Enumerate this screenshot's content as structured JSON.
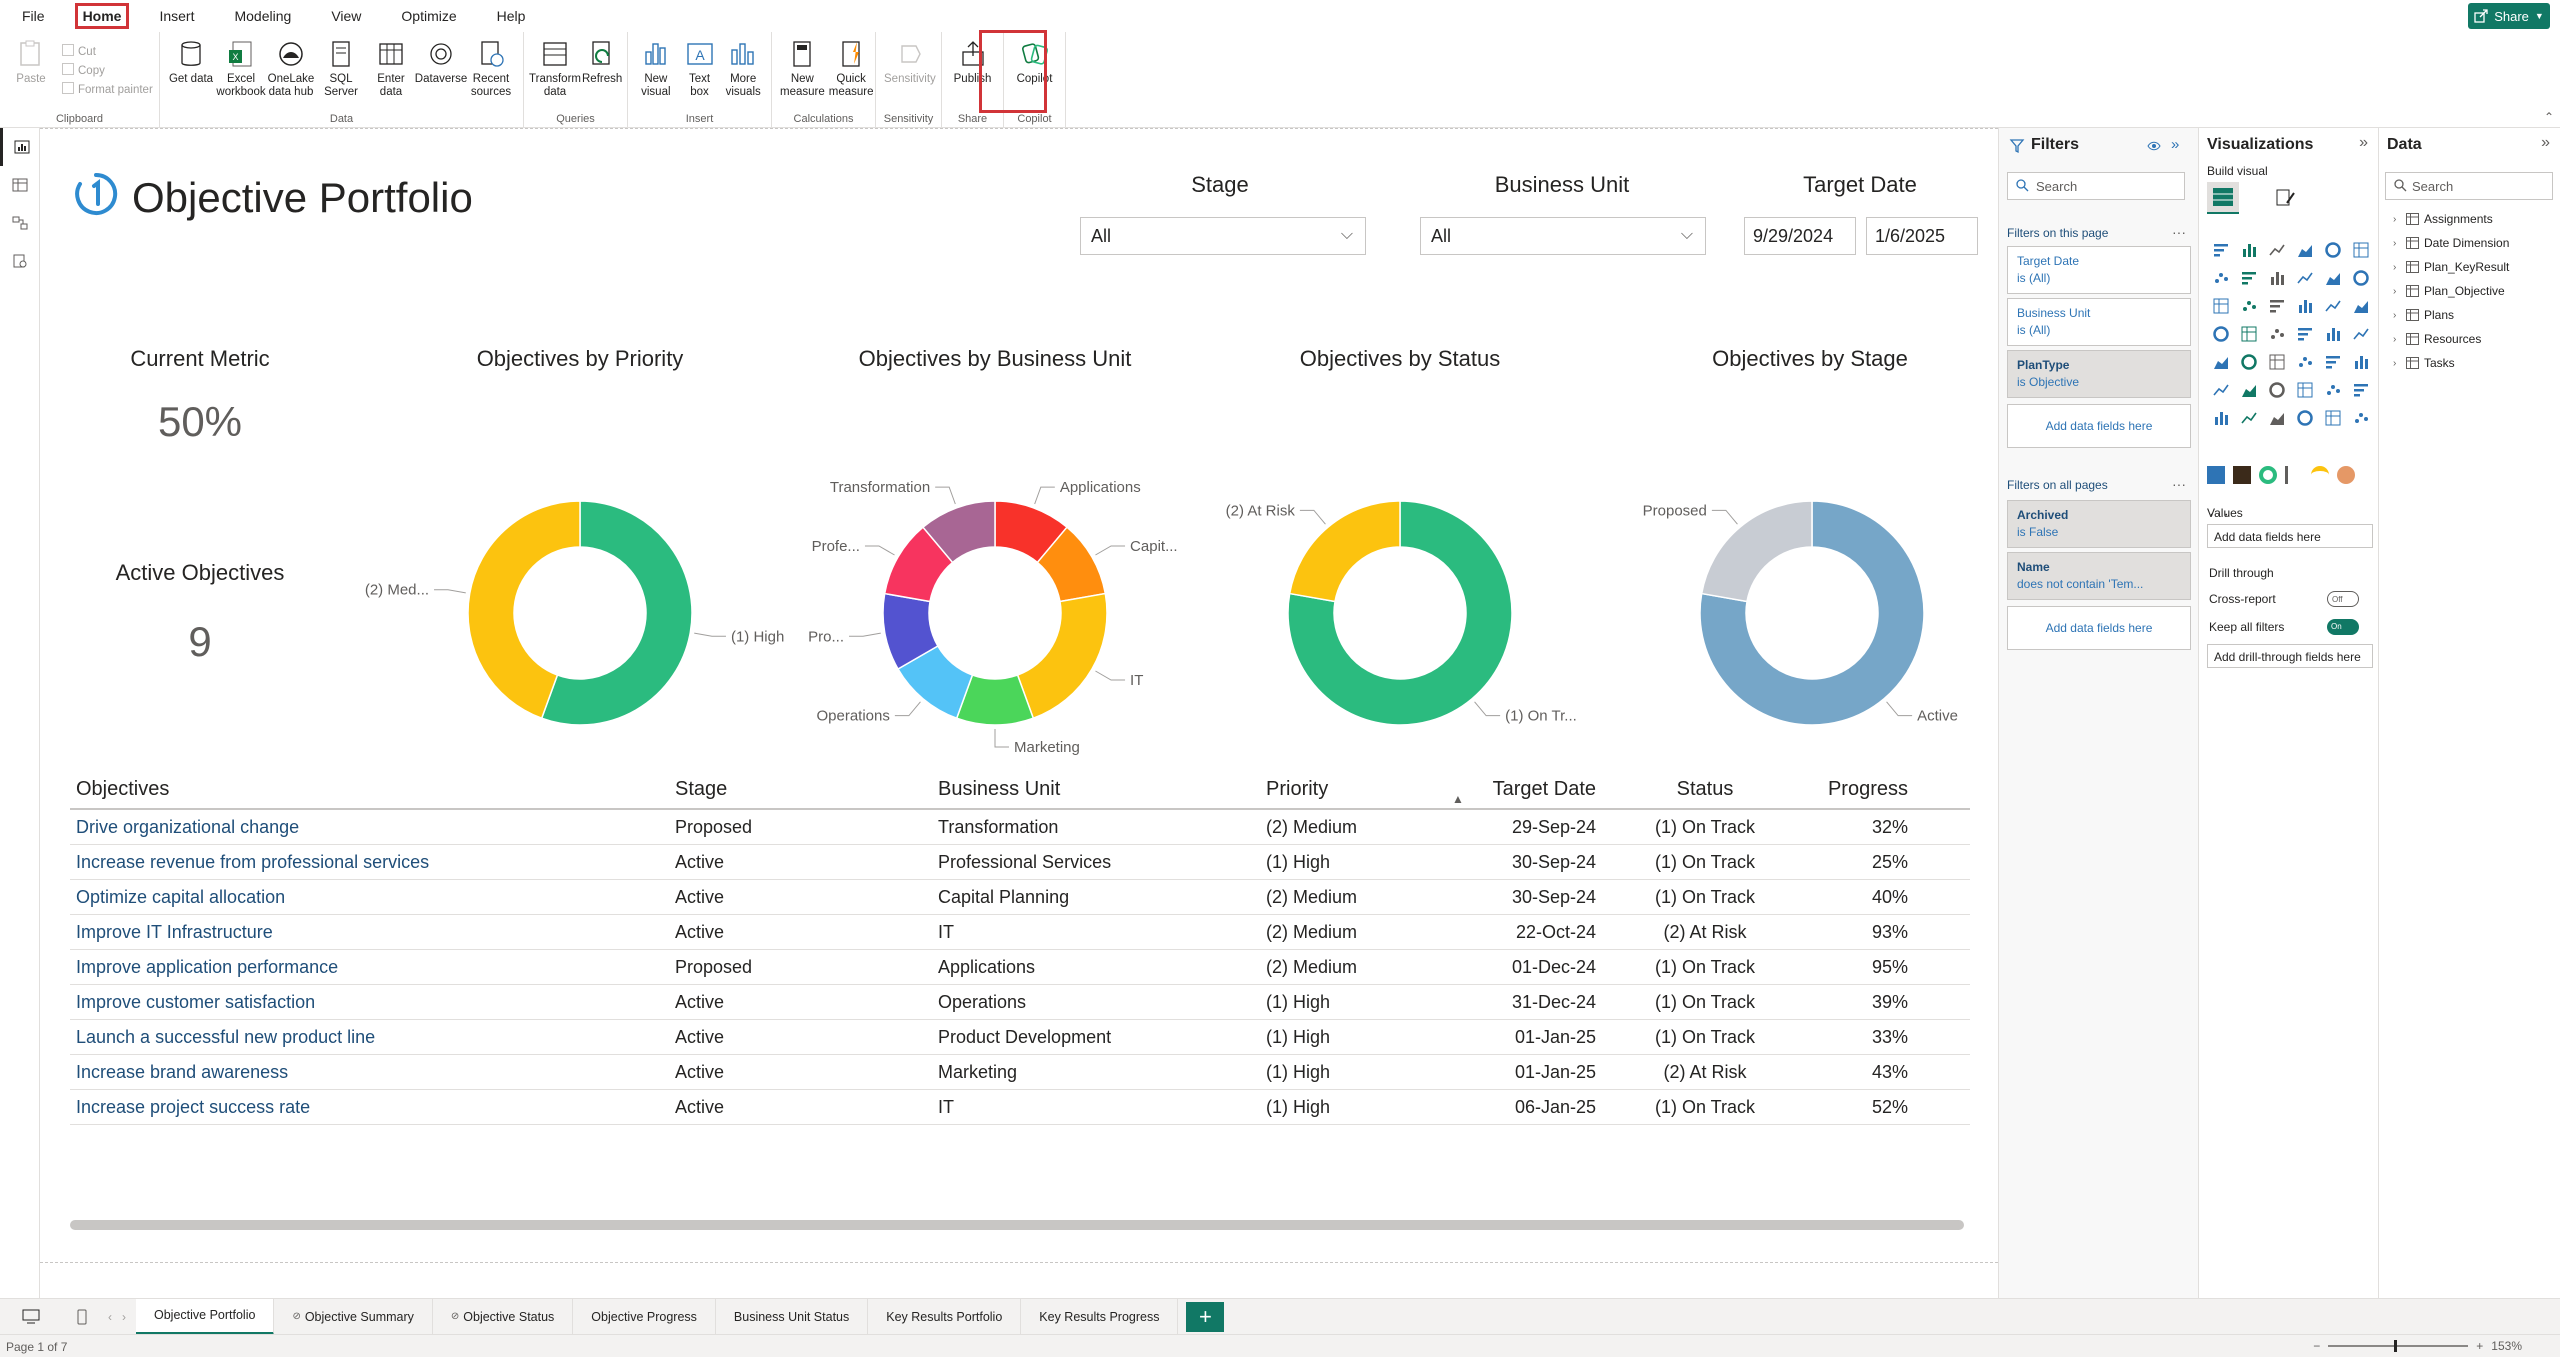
{
  "menu": {
    "items": [
      "File",
      "Home",
      "Insert",
      "Modeling",
      "View",
      "Optimize",
      "Help"
    ],
    "active": "Home",
    "share_label": "Share"
  },
  "ribbon": {
    "clipboard": {
      "paste": "Paste",
      "cut": "Cut",
      "copy": "Copy",
      "format_painter": "Format painter",
      "label": "Clipboard"
    },
    "data": {
      "label": "Data",
      "buttons": [
        "Get data",
        "Excel workbook",
        "OneLake data hub",
        "SQL Server",
        "Enter data",
        "Dataverse",
        "Recent sources"
      ]
    },
    "queries": {
      "label": "Queries",
      "buttons": [
        "Transform data",
        "Refresh"
      ]
    },
    "insert": {
      "label": "Insert",
      "buttons": [
        "New visual",
        "Text box",
        "More visuals"
      ]
    },
    "calculations": {
      "label": "Calculations",
      "buttons": [
        "New measure",
        "Quick measure"
      ]
    },
    "sensitivity": {
      "label": "Sensitivity",
      "button": "Sensitivity"
    },
    "share": {
      "label": "Share",
      "button": "Publish"
    },
    "copilot": {
      "label": "Copilot",
      "button": "Copilot"
    }
  },
  "report": {
    "title": "Objective Portfolio",
    "slicers": {
      "stage": {
        "label": "Stage",
        "value": "All"
      },
      "business_unit": {
        "label": "Business Unit",
        "value": "All"
      },
      "target_date": {
        "label": "Target Date",
        "from": "9/29/2024",
        "to": "1/6/2025"
      }
    },
    "cards": {
      "current_metric": {
        "label": "Current Metric",
        "value": "50%"
      },
      "active_objectives": {
        "label": "Active Objectives",
        "value": "9"
      }
    },
    "charts": {
      "priority": "Objectives by Priority",
      "business_unit": "Objectives by Business Unit",
      "status": "Objectives by Status",
      "stage": "Objectives by Stage"
    },
    "table": {
      "headers": [
        "Objectives",
        "Stage",
        "Business Unit",
        "Priority",
        "Target Date",
        "Status",
        "Progress"
      ],
      "rows": [
        [
          "Drive organizational change",
          "Proposed",
          "Transformation",
          "(2) Medium",
          "29-Sep-24",
          "(1) On Track",
          "32%"
        ],
        [
          "Increase revenue from professional services",
          "Active",
          "Professional Services",
          "(1) High",
          "30-Sep-24",
          "(1) On Track",
          "25%"
        ],
        [
          "Optimize capital allocation",
          "Active",
          "Capital Planning",
          "(2) Medium",
          "30-Sep-24",
          "(1) On Track",
          "40%"
        ],
        [
          "Improve IT Infrastructure",
          "Active",
          "IT",
          "(2) Medium",
          "22-Oct-24",
          "(2) At Risk",
          "93%"
        ],
        [
          "Improve application performance",
          "Proposed",
          "Applications",
          "(2) Medium",
          "01-Dec-24",
          "(1) On Track",
          "95%"
        ],
        [
          "Improve customer satisfaction",
          "Active",
          "Operations",
          "(1) High",
          "31-Dec-24",
          "(1) On Track",
          "39%"
        ],
        [
          "Launch a successful new product line",
          "Active",
          "Product Development",
          "(1) High",
          "01-Jan-25",
          "(1) On Track",
          "33%"
        ],
        [
          "Increase brand awareness",
          "Active",
          "Marketing",
          "(1) High",
          "01-Jan-25",
          "(2) At Risk",
          "43%"
        ],
        [
          "Increase project success rate",
          "Active",
          "IT",
          "(1) High",
          "06-Jan-25",
          "(1) On Track",
          "52%"
        ]
      ]
    }
  },
  "chart_data": [
    {
      "type": "pie",
      "title": "Objectives by Priority",
      "categories": [
        "(1) High",
        "(2) Med..."
      ],
      "values": [
        5,
        4
      ],
      "colors": [
        "#2BBB7F",
        "#FCC30F"
      ]
    },
    {
      "type": "pie",
      "title": "Objectives by Business Unit",
      "categories": [
        "Applications",
        "Capit...",
        "IT",
        "Marketing",
        "Operations",
        "Pro...",
        "Profe...",
        "Transformation"
      ],
      "values": [
        1,
        1,
        2,
        1,
        1,
        1,
        1,
        1
      ],
      "colors": [
        "#F8322A",
        "#FF8E0E",
        "#FCC30F",
        "#4BD65A",
        "#54C3F7",
        "#5353D0",
        "#F7345F",
        "#A86694"
      ]
    },
    {
      "type": "pie",
      "title": "Objectives by Status",
      "categories": [
        "(1) On Tr...",
        "(2) At Risk"
      ],
      "values": [
        7,
        2
      ],
      "colors": [
        "#2BBB7F",
        "#FCC30F"
      ]
    },
    {
      "type": "pie",
      "title": "Objectives by Stage",
      "categories": [
        "Active",
        "Proposed"
      ],
      "values": [
        7,
        2
      ],
      "colors": [
        "#76A6C8",
        "#C8CCD3"
      ]
    }
  ],
  "filters_pane": {
    "title": "Filters",
    "search_placeholder": "Search",
    "on_this_page": "Filters on this page",
    "page_filters": [
      {
        "name": "Target Date",
        "condition": "is (All)",
        "applied": false
      },
      {
        "name": "Business Unit",
        "condition": "is (All)",
        "applied": false
      },
      {
        "name": "PlanType",
        "condition": "is Objective",
        "applied": true
      }
    ],
    "add_fields": "Add data fields here",
    "on_all_pages": "Filters on all pages",
    "all_filters": [
      {
        "name": "Archived",
        "condition": "is False"
      },
      {
        "name": "Name",
        "condition": "does not contain 'Tem..."
      }
    ]
  },
  "viz_pane": {
    "title": "Visualizations",
    "build_visual": "Build visual",
    "values_label": "Values",
    "values_well": "Add data fields here",
    "drill_through": "Drill through",
    "cross_report": "Cross-report",
    "cross_report_state": "Off",
    "keep_all_filters": "Keep all filters",
    "keep_all_filters_state": "On",
    "drill_well": "Add drill-through fields here"
  },
  "data_pane": {
    "title": "Data",
    "search_placeholder": "Search",
    "tables": [
      "Assignments",
      "Date Dimension",
      "Plan_KeyResult",
      "Plan_Objective",
      "Plans",
      "Resources",
      "Tasks"
    ]
  },
  "page_tabs": {
    "tabs": [
      "Objective Portfolio",
      "Objective Summary",
      "Objective Status",
      "Objective Progress",
      "Business Unit Status",
      "Key Results Portfolio",
      "Key Results Progress"
    ],
    "selected": "Objective Portfolio",
    "hidden": [
      "Objective Summary",
      "Objective Status"
    ]
  },
  "status": {
    "page": "Page 1 of 7",
    "zoom": "153%"
  }
}
